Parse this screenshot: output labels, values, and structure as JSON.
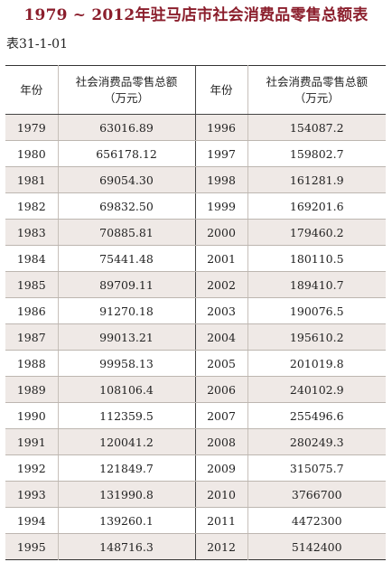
{
  "title": "1979 ~ 2012年驻马店市社会消费品零售总额表",
  "table_id": "表31-1-01",
  "headers": {
    "year": "年份",
    "amount_line1": "社会消费品零售总额",
    "amount_line2": "（万元）"
  },
  "rows": [
    {
      "y1": "1979",
      "v1": "63016.89",
      "y2": "1996",
      "v2": "154087.2"
    },
    {
      "y1": "1980",
      "v1": "656178.12",
      "y2": "1997",
      "v2": "159802.7"
    },
    {
      "y1": "1981",
      "v1": "69054.30",
      "y2": "1998",
      "v2": "161281.9"
    },
    {
      "y1": "1982",
      "v1": "69832.50",
      "y2": "1999",
      "v2": "169201.6"
    },
    {
      "y1": "1983",
      "v1": "70885.81",
      "y2": "2000",
      "v2": "179460.2"
    },
    {
      "y1": "1984",
      "v1": "75441.48",
      "y2": "2001",
      "v2": "180110.5"
    },
    {
      "y1": "1985",
      "v1": "89709.11",
      "y2": "2002",
      "v2": "189410.7"
    },
    {
      "y1": "1986",
      "v1": "91270.18",
      "y2": "2003",
      "v2": "190076.5"
    },
    {
      "y1": "1987",
      "v1": "99013.21",
      "y2": "2004",
      "v2": "195610.2"
    },
    {
      "y1": "1988",
      "v1": "99958.13",
      "y2": "2005",
      "v2": "201019.8"
    },
    {
      "y1": "1989",
      "v1": "108106.4",
      "y2": "2006",
      "v2": "240102.9"
    },
    {
      "y1": "1990",
      "v1": "112359.5",
      "y2": "2007",
      "v2": "255496.6"
    },
    {
      "y1": "1991",
      "v1": "120041.2",
      "y2": "2008",
      "v2": "280249.3"
    },
    {
      "y1": "1992",
      "v1": "121849.7",
      "y2": "2009",
      "v2": "315075.7"
    },
    {
      "y1": "1993",
      "v1": "131990.8",
      "y2": "2010",
      "v2": "3766700"
    },
    {
      "y1": "1994",
      "v1": "139260.1",
      "y2": "2011",
      "v2": "4472300"
    },
    {
      "y1": "1995",
      "v1": "148716.3",
      "y2": "2012",
      "v2": "5142400"
    }
  ],
  "colors": {
    "title": "#8b1e2c",
    "row_shade": "#efe9e6",
    "rule": "#333333"
  }
}
